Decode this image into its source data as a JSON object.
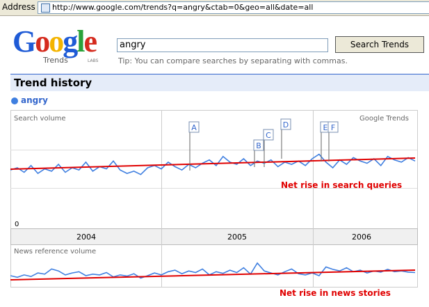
{
  "address_bar": {
    "label": "Address",
    "url": "http://www.google.com/trends?q=angry&ctab=0&geo=all&date=all"
  },
  "logo": {
    "letters": [
      "G",
      "o",
      "o",
      "g",
      "l",
      "e"
    ],
    "product": "Trends",
    "badge": "LABS"
  },
  "search": {
    "query": "angry",
    "button": "Search Trends",
    "tip": "Tip: You can compare searches by separating with commas."
  },
  "section_title": "Trend history",
  "term": "angry",
  "charts": [
    {
      "type": "line",
      "label": "Search volume",
      "source": "Google Trends",
      "zero_label": "0",
      "ylim": [
        0,
        100
      ],
      "color": "#3f7fe0",
      "flags": [
        "A",
        "B",
        "C",
        "D",
        "E",
        "F"
      ],
      "values": [
        48,
        50,
        46,
        52,
        45,
        49,
        47,
        53,
        46,
        50,
        48,
        55,
        47,
        51,
        49,
        56,
        48,
        45,
        47,
        44,
        50,
        52,
        49,
        55,
        51,
        48,
        53,
        50,
        54,
        57,
        52,
        60,
        55,
        53,
        58,
        52,
        56,
        54,
        57,
        51,
        55,
        53,
        56,
        52,
        58,
        62,
        55,
        50,
        57,
        53,
        59,
        56,
        54,
        58,
        52,
        60,
        57,
        55,
        59,
        56
      ],
      "annotation": "Net rise in search queries"
    },
    {
      "type": "line",
      "label": "News reference volume",
      "ylim": [
        0,
        100
      ],
      "color": "#3f7fe0",
      "values": [
        28,
        24,
        30,
        26,
        35,
        32,
        45,
        40,
        30,
        35,
        38,
        28,
        32,
        30,
        36,
        25,
        30,
        27,
        33,
        22,
        28,
        35,
        30,
        38,
        42,
        33,
        40,
        36,
        45,
        30,
        38,
        34,
        42,
        36,
        48,
        32,
        60,
        40,
        35,
        30,
        38,
        45,
        33,
        30,
        35,
        28,
        50,
        44,
        40,
        48,
        38,
        42,
        35,
        40,
        37,
        44,
        38,
        40,
        37,
        36
      ],
      "annotation": "Net rise in news stories"
    }
  ],
  "years": [
    "2004",
    "2005",
    "2006"
  ]
}
